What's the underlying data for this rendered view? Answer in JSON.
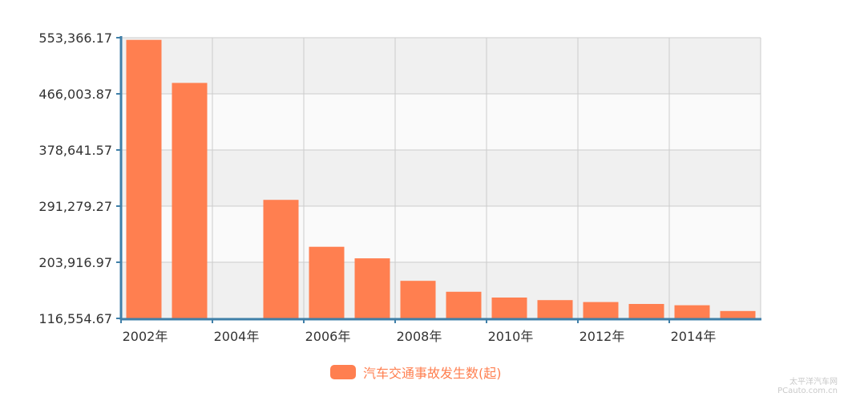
{
  "chart_data": {
    "type": "bar",
    "categories": [
      "2002年",
      "2003年",
      "2004年",
      "2005年",
      "2006年",
      "2007年",
      "2008年",
      "2009年",
      "2010年",
      "2011年",
      "2012年",
      "2013年",
      "2014年",
      "2015年"
    ],
    "x_tick_labels": [
      "2002年",
      "2004年",
      "2006年",
      "2008年",
      "2010年",
      "2012年",
      "2014年"
    ],
    "y_tick_labels": [
      "553,366.17",
      "466,003.87",
      "378,641.57",
      "291,279.27",
      "203,916.97",
      "116,554.67"
    ],
    "ylim": [
      116554.67,
      553366.17
    ],
    "series": [
      {
        "name": "汽车交通事故发生数(起)",
        "values": [
          550000,
          483000,
          null,
          301000,
          228000,
          210000,
          175000,
          158000,
          149000,
          145000,
          142000,
          139000,
          137000,
          128000
        ]
      }
    ],
    "title": "",
    "xlabel": "",
    "ylabel": "",
    "grid": true,
    "legend": "bottom-center",
    "bar_color": "#ff7f50",
    "axis_color": "#3f7fa8",
    "grid_band_color": "#f0f0f0"
  },
  "watermark": {
    "line1": "太平洋汽车网",
    "line2": "PCauto.com.cn"
  }
}
